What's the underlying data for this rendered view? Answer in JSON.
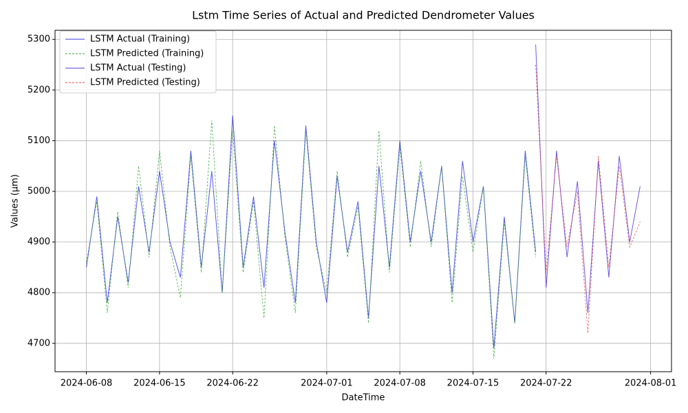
{
  "chart_data": {
    "type": "line",
    "title": "Lstm Time Series of Actual and Predicted Dendrometer Values",
    "x_label": "DateTime",
    "y_label": "Values (µm)",
    "xlim": [
      "2024-06-05",
      "2024-08-03"
    ],
    "xticks": [
      "2024-06-08",
      "2024-06-15",
      "2024-06-22",
      "2024-07-01",
      "2024-07-08",
      "2024-07-15",
      "2024-07-22",
      "2024-08-01"
    ],
    "ylim": [
      4644,
      5318
    ],
    "yticks": [
      4700,
      4800,
      4900,
      5000,
      5100,
      5200,
      5300
    ],
    "grid": true,
    "legend": "upper left",
    "series": [
      {
        "name": "LSTM Actual (Training)",
        "color": "#3a3ae0",
        "linestyle": "solid",
        "x": [
          "2024-06-08",
          "2024-06-09",
          "2024-06-10",
          "2024-06-11",
          "2024-06-12",
          "2024-06-13",
          "2024-06-14",
          "2024-06-15",
          "2024-06-16",
          "2024-06-17",
          "2024-06-18",
          "2024-06-19",
          "2024-06-20",
          "2024-06-21",
          "2024-06-22",
          "2024-06-23",
          "2024-06-24",
          "2024-06-25",
          "2024-06-26",
          "2024-06-27",
          "2024-06-28",
          "2024-06-29",
          "2024-06-30",
          "2024-07-01",
          "2024-07-02",
          "2024-07-03",
          "2024-07-04",
          "2024-07-05",
          "2024-07-06",
          "2024-07-07",
          "2024-07-08",
          "2024-07-09",
          "2024-07-10",
          "2024-07-11",
          "2024-07-12",
          "2024-07-13",
          "2024-07-14",
          "2024-07-15",
          "2024-07-16",
          "2024-07-17",
          "2024-07-18",
          "2024-07-19",
          "2024-07-20",
          "2024-07-21"
        ],
        "values": [
          4850,
          4990,
          4780,
          4950,
          4820,
          5010,
          4880,
          5040,
          4900,
          4830,
          5080,
          4850,
          5040,
          4800,
          5150,
          4850,
          4990,
          4810,
          5100,
          4920,
          4780,
          5130,
          4900,
          4780,
          5030,
          4880,
          4980,
          4750,
          5050,
          4850,
          5100,
          4900,
          5040,
          4900,
          5050,
          4800,
          5060,
          4900,
          5010,
          4690,
          4950,
          4740,
          5080,
          4880
        ]
      },
      {
        "name": "LSTM Predicted (Training)",
        "color": "#2ca02c",
        "linestyle": "dashed",
        "x": [
          "2024-06-08",
          "2024-06-09",
          "2024-06-10",
          "2024-06-11",
          "2024-06-12",
          "2024-06-13",
          "2024-06-14",
          "2024-06-15",
          "2024-06-16",
          "2024-06-17",
          "2024-06-18",
          "2024-06-19",
          "2024-06-20",
          "2024-06-21",
          "2024-06-22",
          "2024-06-23",
          "2024-06-24",
          "2024-06-25",
          "2024-06-26",
          "2024-06-27",
          "2024-06-28",
          "2024-06-29",
          "2024-06-30",
          "2024-07-01",
          "2024-07-02",
          "2024-07-03",
          "2024-07-04",
          "2024-07-05",
          "2024-07-06",
          "2024-07-07",
          "2024-07-08",
          "2024-07-09",
          "2024-07-10",
          "2024-07-11",
          "2024-07-12",
          "2024-07-13",
          "2024-07-14",
          "2024-07-15",
          "2024-07-16",
          "2024-07-17",
          "2024-07-18",
          "2024-07-19",
          "2024-07-20",
          "2024-07-21"
        ],
        "values": [
          4860,
          4980,
          4760,
          4960,
          4810,
          5050,
          4870,
          5080,
          4890,
          4790,
          5070,
          4840,
          5140,
          4800,
          5120,
          4840,
          4980,
          4750,
          5130,
          4910,
          4760,
          5120,
          4890,
          4800,
          5040,
          4870,
          4970,
          4740,
          5120,
          4840,
          5090,
          4890,
          5060,
          4890,
          5050,
          4780,
          5030,
          4880,
          5010,
          4670,
          4940,
          4740,
          5070,
          4870
        ]
      },
      {
        "name": "LSTM Actual (Testing)",
        "color": "#5a3ad8",
        "linestyle": "solid",
        "x": [
          "2024-07-21",
          "2024-07-22",
          "2024-07-23",
          "2024-07-24",
          "2024-07-25",
          "2024-07-26",
          "2024-07-27",
          "2024-07-28",
          "2024-07-29",
          "2024-07-30",
          "2024-07-31"
        ],
        "values": [
          5290,
          4810,
          5080,
          4870,
          5020,
          4760,
          5060,
          4830,
          5070,
          4900,
          5010
        ]
      },
      {
        "name": "LSTM Predicted (Testing)",
        "color": "#e04040",
        "linestyle": "dashed",
        "x": [
          "2024-07-21",
          "2024-07-22",
          "2024-07-23",
          "2024-07-24",
          "2024-07-25",
          "2024-07-26",
          "2024-07-27",
          "2024-07-28",
          "2024-07-29",
          "2024-07-30",
          "2024-07-31"
        ],
        "values": [
          5250,
          4840,
          5070,
          4890,
          5000,
          4720,
          5070,
          4850,
          5050,
          4890,
          4940
        ]
      }
    ]
  }
}
